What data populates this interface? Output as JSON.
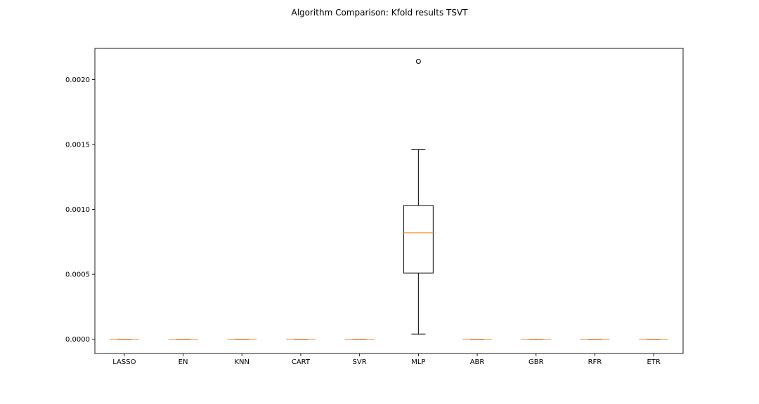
{
  "chart_data": {
    "type": "box",
    "title": "Algorithm Comparison: Kfold results TSVT",
    "xlabel": "",
    "ylabel": "",
    "categories": [
      "LASSO",
      "EN",
      "KNN",
      "CART",
      "SVR",
      "MLP",
      "ABR",
      "GBR",
      "RFR",
      "ETR"
    ],
    "ylim": [
      -0.00011,
      0.00224
    ],
    "yticks": [
      "0.0000",
      "0.0005",
      "0.0010",
      "0.0015",
      "0.0020"
    ],
    "ytick_values": [
      0.0,
      0.0005,
      0.001,
      0.0015,
      0.002
    ],
    "grid": false,
    "boxes": [
      {
        "name": "LASSO",
        "whislo": 0,
        "q1": 0,
        "med": 0,
        "q3": 0,
        "whishi": 0,
        "fliers": []
      },
      {
        "name": "EN",
        "whislo": 0,
        "q1": 0,
        "med": 0,
        "q3": 0,
        "whishi": 0,
        "fliers": []
      },
      {
        "name": "KNN",
        "whislo": 0,
        "q1": 0,
        "med": 0,
        "q3": 0,
        "whishi": 0,
        "fliers": []
      },
      {
        "name": "CART",
        "whislo": 0,
        "q1": 0,
        "med": 0,
        "q3": 0,
        "whishi": 0,
        "fliers": []
      },
      {
        "name": "SVR",
        "whislo": 0,
        "q1": 0,
        "med": 0,
        "q3": 0,
        "whishi": 0,
        "fliers": []
      },
      {
        "name": "MLP",
        "whislo": 4e-05,
        "q1": 0.00051,
        "med": 0.00082,
        "q3": 0.00103,
        "whishi": 0.00146,
        "fliers": [
          0.00214
        ]
      },
      {
        "name": "ABR",
        "whislo": 0,
        "q1": 0,
        "med": 0,
        "q3": 0,
        "whishi": 0,
        "fliers": []
      },
      {
        "name": "GBR",
        "whislo": 0,
        "q1": 0,
        "med": 0,
        "q3": 0,
        "whishi": 0,
        "fliers": []
      },
      {
        "name": "RFR",
        "whislo": 0,
        "q1": 0,
        "med": 0,
        "q3": 0,
        "whishi": 0,
        "fliers": []
      },
      {
        "name": "ETR",
        "whislo": 0,
        "q1": 0,
        "med": 0,
        "q3": 0,
        "whishi": 0,
        "fliers": []
      }
    ],
    "colors": {
      "box": "#000000",
      "median": "#ff7f0e",
      "flier": "#000000"
    }
  }
}
